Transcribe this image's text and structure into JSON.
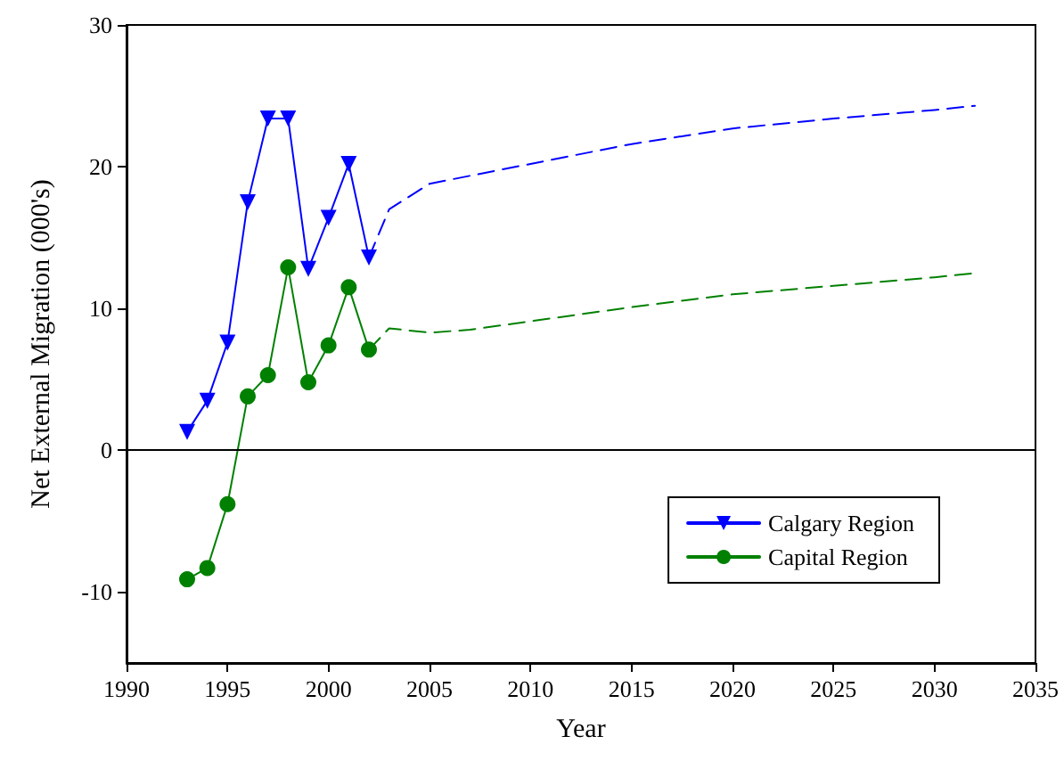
{
  "chart_data": {
    "type": "line",
    "xlabel": "Year",
    "ylabel": "Net External Migration (000's)",
    "xlim": [
      1990,
      2035
    ],
    "xticks": [
      1990,
      1995,
      2000,
      2005,
      2010,
      2015,
      2020,
      2025,
      2030,
      2035
    ],
    "ylim": [
      -15,
      30
    ],
    "yticks": [
      -10,
      0,
      10,
      20,
      30
    ],
    "grid": false,
    "legend": "bottom right",
    "ref_lines": [
      {
        "axis": "y",
        "value": 0,
        "color": "#000000"
      }
    ],
    "series": [
      {
        "name": "Calgary Region",
        "color": "#0000ff",
        "marker": "triangle",
        "line_style": "solid",
        "x": [
          1993,
          1994,
          1995,
          1996,
          1997,
          1998,
          1999,
          2000,
          2001,
          2002
        ],
        "values": [
          1.3,
          3.5,
          7.6,
          17.5,
          23.4,
          23.4,
          12.8,
          16.4,
          20.2,
          13.6
        ]
      },
      {
        "name": "Capital Region",
        "color": "#008000",
        "marker": "circle",
        "line_style": "solid",
        "x": [
          1993,
          1994,
          1995,
          1996,
          1997,
          1998,
          1999,
          2000,
          2001,
          2002
        ],
        "values": [
          -9.1,
          -8.3,
          -3.8,
          3.8,
          5.3,
          12.9,
          4.8,
          7.4,
          11.5,
          7.1
        ]
      },
      {
        "color": "#0000ff",
        "marker": "none",
        "line_style": "dashed",
        "x": [
          2002,
          2003,
          2005,
          2010,
          2015,
          2020,
          2025,
          2030,
          2032
        ],
        "values": [
          13.6,
          17.0,
          18.8,
          20.2,
          21.6,
          22.7,
          23.4,
          24.0,
          24.3
        ]
      },
      {
        "color": "#008000",
        "marker": "none",
        "line_style": "dashed",
        "x": [
          2002,
          2003,
          2005,
          2007,
          2010,
          2015,
          2020,
          2025,
          2030,
          2032
        ],
        "values": [
          7.1,
          8.6,
          8.3,
          8.5,
          9.1,
          10.1,
          11.0,
          11.6,
          12.2,
          12.5
        ]
      }
    ]
  }
}
